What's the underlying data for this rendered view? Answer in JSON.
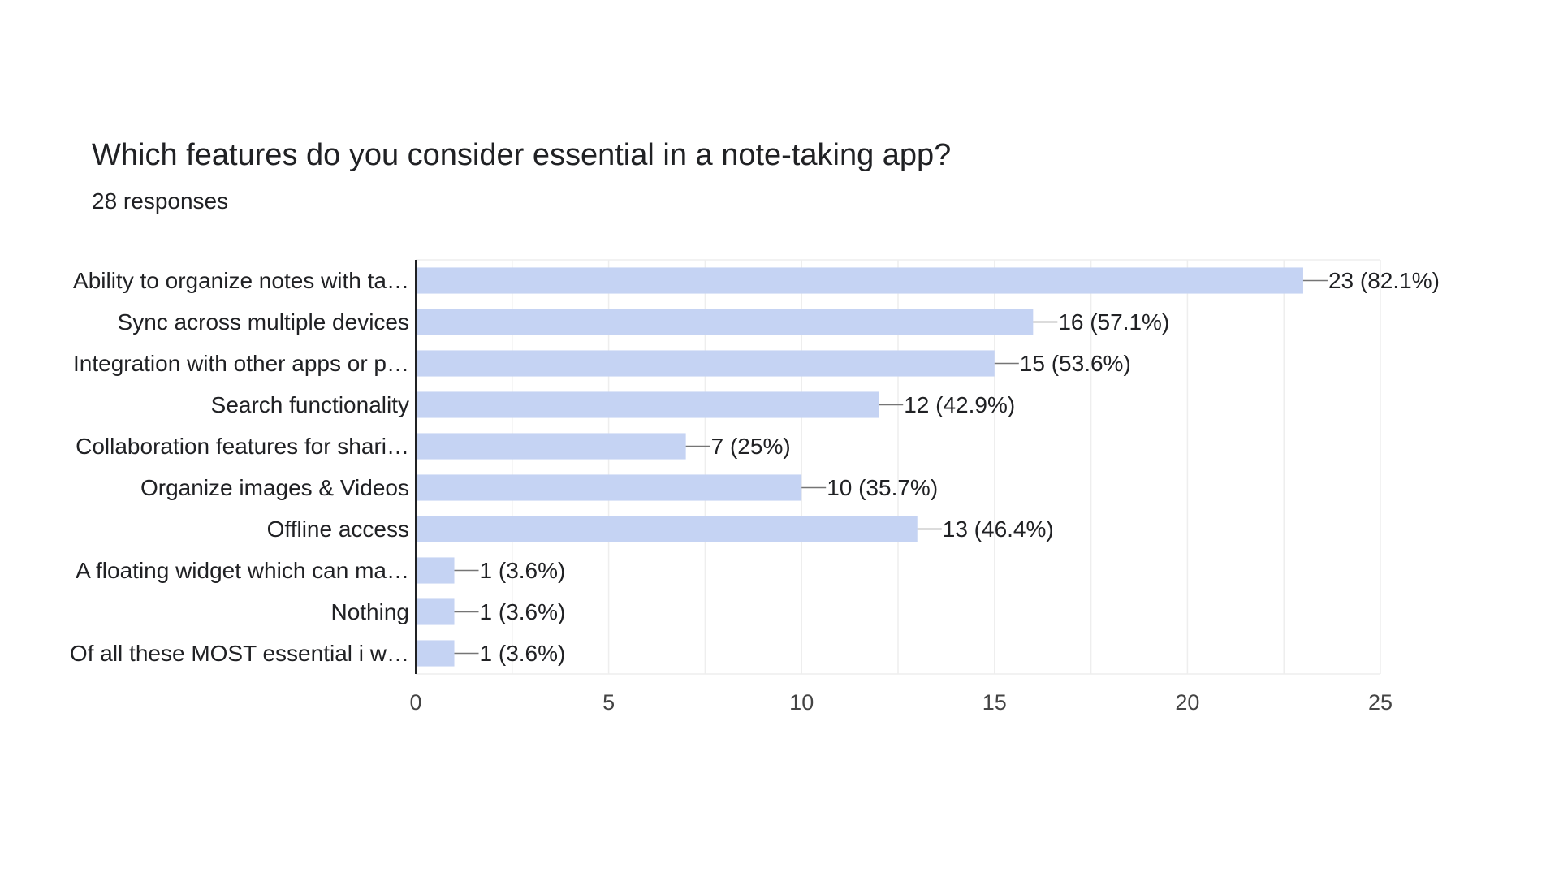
{
  "header": {
    "title": "Which features do you consider essential in a note-taking app?",
    "responses": "28 responses"
  },
  "chart_data": {
    "type": "bar",
    "orientation": "horizontal",
    "categories": [
      "Ability to organize notes with ta…",
      "Sync across multiple devices",
      "Integration with other apps or p…",
      "Search functionality",
      "Collaboration features for shari…",
      "Organize images & Videos",
      "Offline access",
      "A floating widget which can ma…",
      "Nothing",
      "Of all these MOST essential i w…"
    ],
    "values": [
      23,
      16,
      15,
      12,
      7,
      10,
      13,
      1,
      1,
      1
    ],
    "data_labels": [
      "23 (82.1%)",
      "16 (57.1%)",
      "15 (53.6%)",
      "12 (42.9%)",
      "7 (25%)",
      "10 (35.7%)",
      "13 (46.4%)",
      "1 (3.6%)",
      "1 (3.6%)",
      "1 (3.6%)"
    ],
    "xlim": [
      0,
      25
    ],
    "xticks": [
      0,
      5,
      10,
      15,
      20,
      25
    ],
    "xtick_labels": [
      "0",
      "5",
      "10",
      "15",
      "20",
      "25"
    ],
    "grid": true,
    "bar_color": "#c5d3f3",
    "grid_color": "#eeeeee",
    "axis_color": "#202124"
  }
}
